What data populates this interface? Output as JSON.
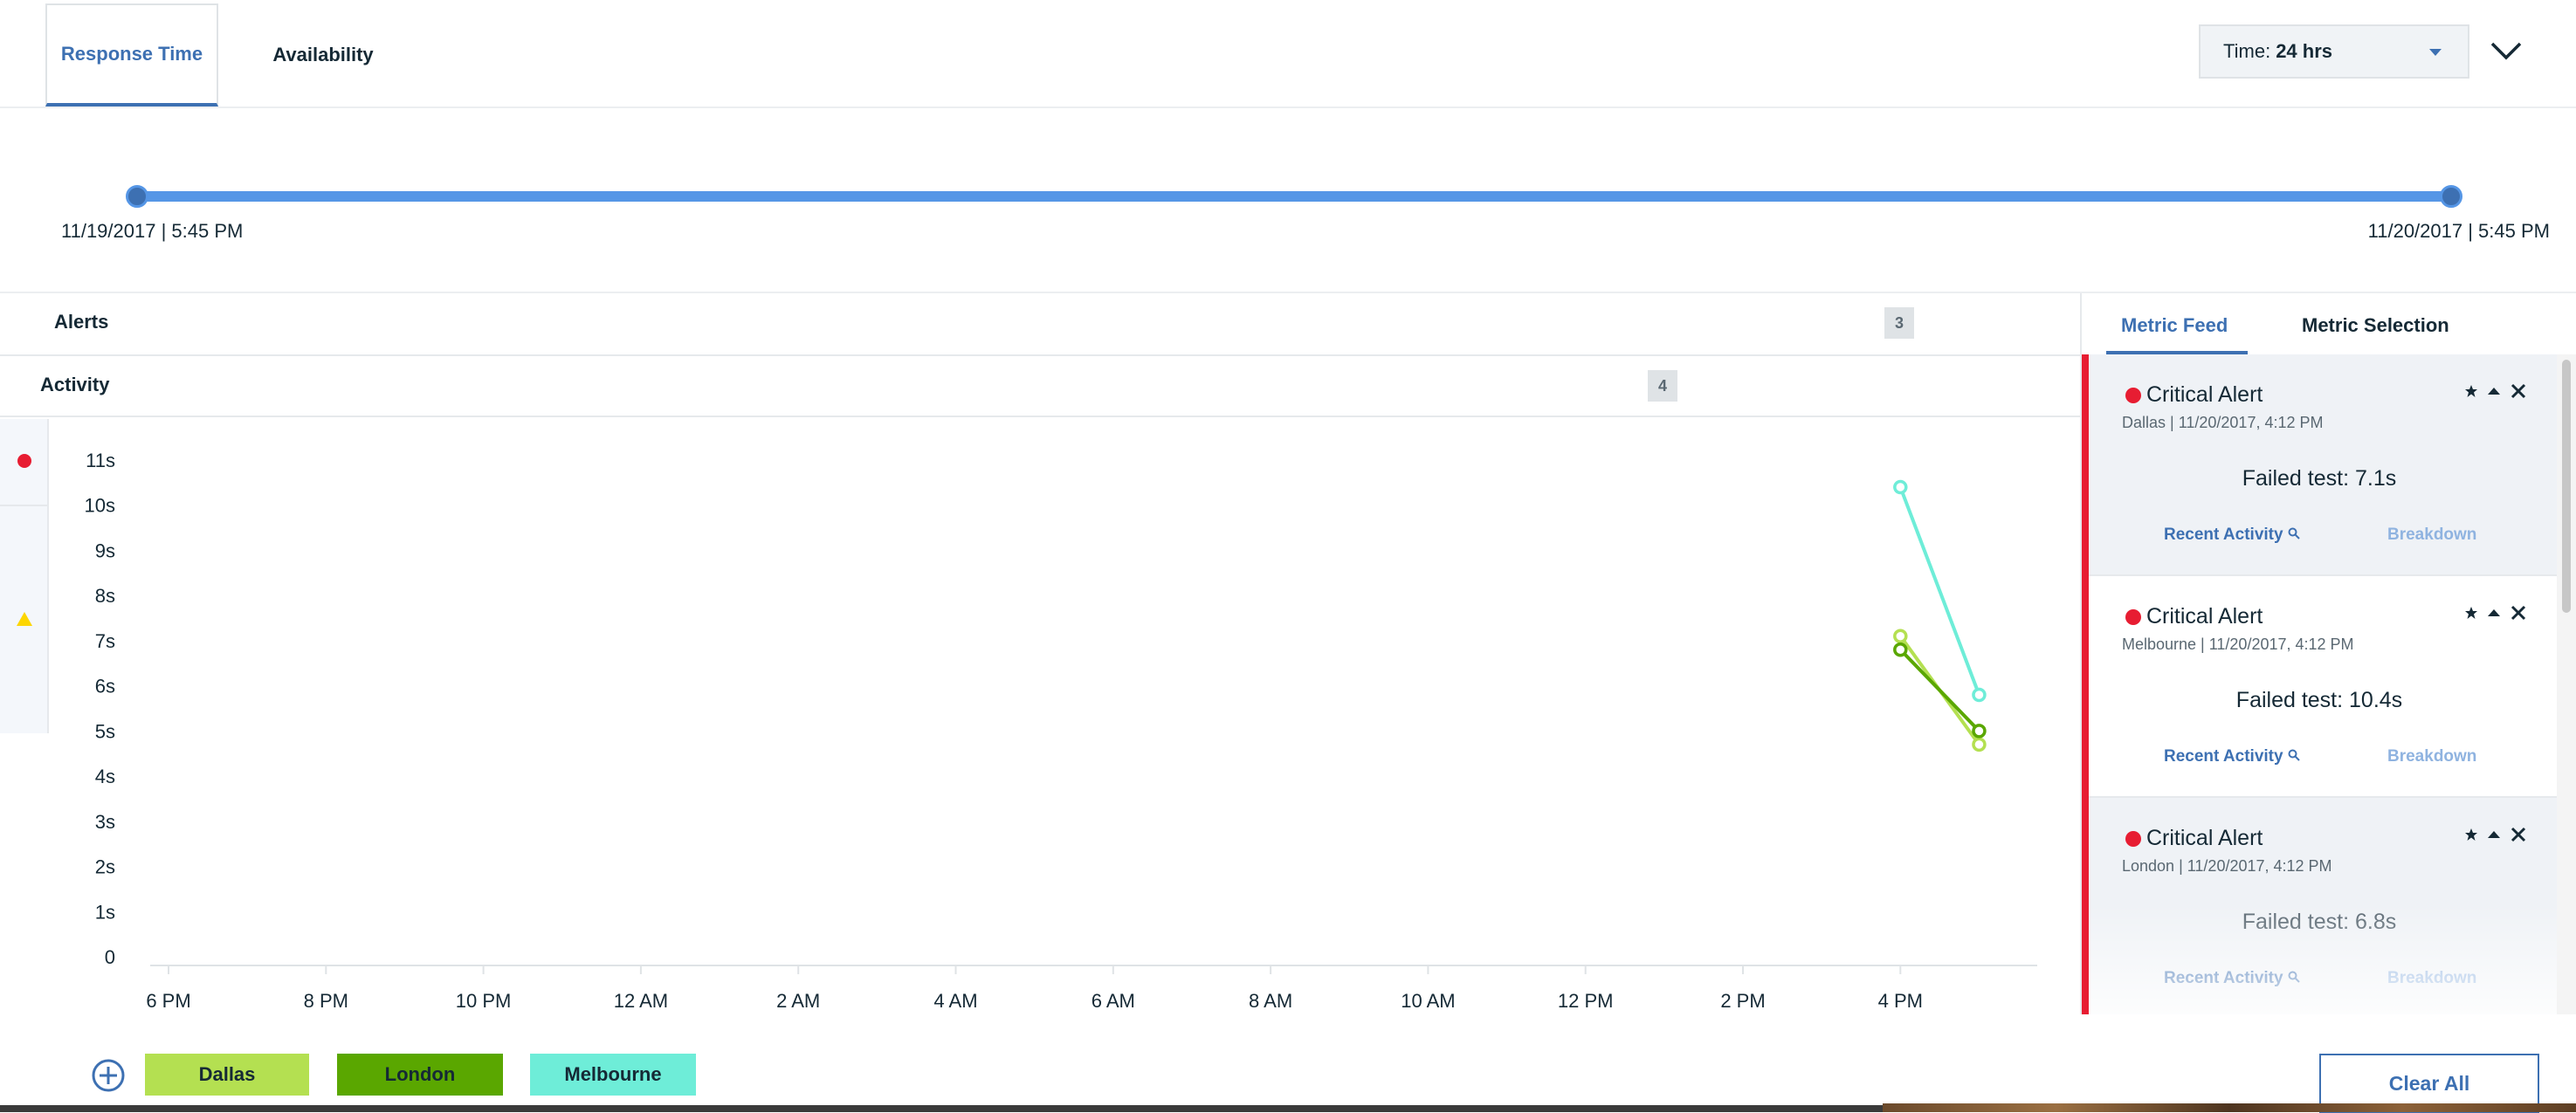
{
  "tabs": [
    {
      "label": "Response Time",
      "active": true
    },
    {
      "label": "Availability",
      "active": false
    }
  ],
  "time_selector": {
    "label": "Time:",
    "value": "24 hrs"
  },
  "range": {
    "start": "11/19/2017 | 5:45 PM",
    "end": "11/20/2017 | 5:45 PM"
  },
  "rows": {
    "alerts": {
      "label": "Alerts",
      "count": "3"
    },
    "activity": {
      "label": "Activity",
      "count": "4"
    }
  },
  "colors": {
    "accent": "#3d70b2",
    "critical": "#e71d32",
    "warning": "#fdd600",
    "dallas": "#b4e051",
    "london": "#5aa700",
    "melbourne": "#6eedd8"
  },
  "chart_data": {
    "type": "line",
    "ylim": [
      0,
      11
    ],
    "y_ticks": [
      "0",
      "1s",
      "2s",
      "3s",
      "4s",
      "5s",
      "6s",
      "7s",
      "8s",
      "9s",
      "10s",
      "11s"
    ],
    "x_ticks": [
      "6 PM",
      "8 PM",
      "10 PM",
      "12 AM",
      "2 AM",
      "4 AM",
      "6 AM",
      "8 AM",
      "10 AM",
      "12 PM",
      "2 PM",
      "4 PM"
    ],
    "series": [
      {
        "name": "Dallas",
        "color": "#b4e051",
        "points": [
          {
            "x": "4 PM",
            "y": 7.1
          },
          {
            "x": "5 PM",
            "y": 4.7
          }
        ]
      },
      {
        "name": "London",
        "color": "#5aa700",
        "points": [
          {
            "x": "4 PM",
            "y": 6.8
          },
          {
            "x": "5 PM",
            "y": 5.0
          }
        ]
      },
      {
        "name": "Melbourne",
        "color": "#6eedd8",
        "points": [
          {
            "x": "4 PM",
            "y": 10.4
          },
          {
            "x": "5 PM",
            "y": 5.8
          }
        ]
      }
    ]
  },
  "legend": [
    "Dallas",
    "London",
    "Melbourne"
  ],
  "right_panel": {
    "tabs": [
      {
        "label": "Metric Feed",
        "active": true
      },
      {
        "label": "Metric Selection",
        "active": false
      }
    ],
    "alerts": [
      {
        "title": "Critical Alert",
        "meta": "Dallas | 11/20/2017, 4:12 PM",
        "detail": "Failed test: 7.1s",
        "link1": "Recent Activity",
        "link2": "Breakdown"
      },
      {
        "title": "Critical Alert",
        "meta": "Melbourne | 11/20/2017, 4:12 PM",
        "detail": "Failed test: 10.4s",
        "link1": "Recent Activity",
        "link2": "Breakdown"
      },
      {
        "title": "Critical Alert",
        "meta": "London | 11/20/2017, 4:12 PM",
        "detail": "Failed test: 6.8s",
        "link1": "Recent Activity",
        "link2": "Breakdown"
      }
    ],
    "clear_all": "Clear All"
  }
}
